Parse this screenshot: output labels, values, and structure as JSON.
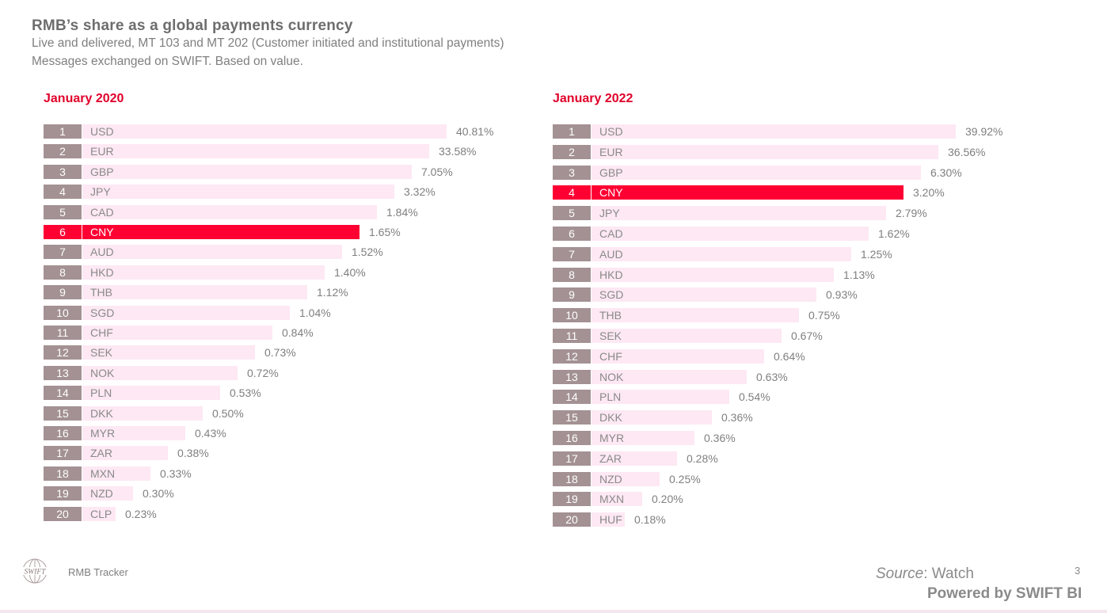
{
  "header": {
    "title": "RMB’s share as a global payments currency",
    "subtitle_line1": "Live and delivered, MT 103 and MT 202 (Customer initiated and institutional payments)",
    "subtitle_line2": "Messages exchanged on SWIFT. Based on value."
  },
  "colors": {
    "highlight": "#ff0033",
    "rank_box": "#a39193",
    "bar": "#fde8f3",
    "panel_title": "#e0002a"
  },
  "chart_data": [
    {
      "type": "bar",
      "orientation": "horizontal",
      "title": "January 2020",
      "highlight": "CNY",
      "categories": [
        "USD",
        "EUR",
        "GBP",
        "JPY",
        "CAD",
        "CNY",
        "AUD",
        "HKD",
        "THB",
        "SGD",
        "CHF",
        "SEK",
        "NOK",
        "PLN",
        "DKK",
        "MYR",
        "ZAR",
        "MXN",
        "NZD",
        "CLP"
      ],
      "ranks": [
        1,
        2,
        3,
        4,
        5,
        6,
        7,
        8,
        9,
        10,
        11,
        12,
        13,
        14,
        15,
        16,
        17,
        18,
        19,
        20
      ],
      "values": [
        40.81,
        33.58,
        7.05,
        3.32,
        1.84,
        1.65,
        1.52,
        1.4,
        1.12,
        1.04,
        0.84,
        0.73,
        0.72,
        0.53,
        0.5,
        0.43,
        0.38,
        0.33,
        0.3,
        0.23
      ],
      "labels": [
        "40.81%",
        "33.58%",
        "7.05%",
        "3.32%",
        "1.84%",
        "1.65%",
        "1.52%",
        "1.40%",
        "1.12%",
        "1.04%",
        "0.84%",
        "0.73%",
        "0.72%",
        "0.53%",
        "0.50%",
        "0.43%",
        "0.38%",
        "0.33%",
        "0.30%",
        "0.23%"
      ]
    },
    {
      "type": "bar",
      "orientation": "horizontal",
      "title": "January 2022",
      "highlight": "CNY",
      "categories": [
        "USD",
        "EUR",
        "GBP",
        "CNY",
        "JPY",
        "CAD",
        "AUD",
        "HKD",
        "SGD",
        "THB",
        "SEK",
        "CHF",
        "NOK",
        "PLN",
        "DKK",
        "MYR",
        "ZAR",
        "NZD",
        "MXN",
        "HUF"
      ],
      "ranks": [
        1,
        2,
        3,
        4,
        5,
        6,
        7,
        8,
        9,
        10,
        11,
        12,
        13,
        14,
        15,
        16,
        17,
        18,
        19,
        20
      ],
      "values": [
        39.92,
        36.56,
        6.3,
        3.2,
        2.79,
        1.62,
        1.25,
        1.13,
        0.93,
        0.75,
        0.67,
        0.64,
        0.63,
        0.54,
        0.36,
        0.36,
        0.28,
        0.25,
        0.2,
        0.18
      ],
      "labels": [
        "39.92%",
        "36.56%",
        "6.30%",
        "3.20%",
        "2.79%",
        "1.62%",
        "1.25%",
        "1.13%",
        "0.93%",
        "0.75%",
        "0.67%",
        "0.64%",
        "0.63%",
        "0.54%",
        "0.36%",
        "0.36%",
        "0.28%",
        "0.25%",
        "0.20%",
        "0.18%"
      ]
    }
  ],
  "footer": {
    "brand": "RMB Tracker",
    "logo_text": "SWIFT",
    "source_label": "Source",
    "source_value": ": Watch",
    "page_number": "3",
    "powered_by": "Powered by SWIFT BI"
  }
}
